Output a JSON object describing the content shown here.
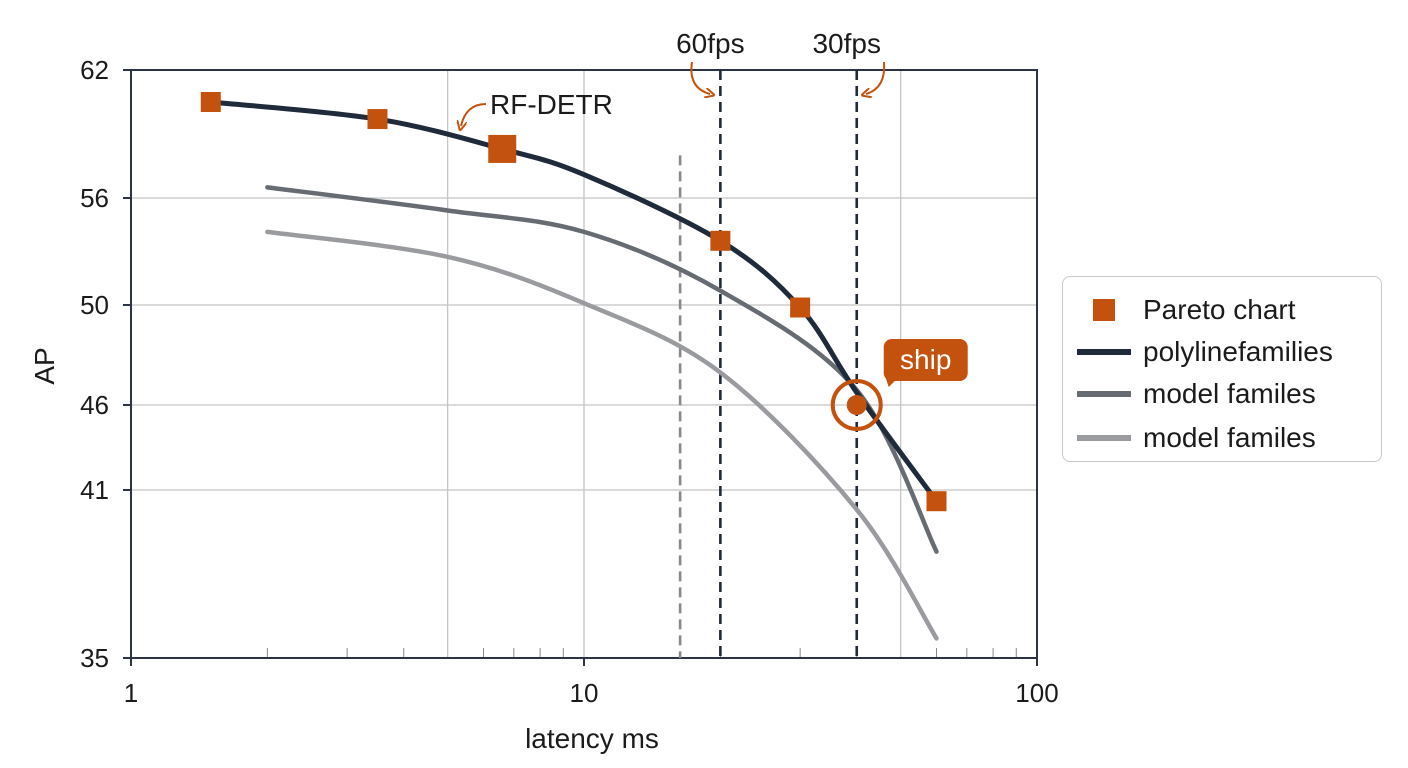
{
  "chart_data": {
    "type": "line",
    "xlabel": "latency ms",
    "ylabel": "AP",
    "x_scale": "log",
    "xlim": [
      1,
      100
    ],
    "ylim": [
      35,
      62
    ],
    "x_ticks": [
      1,
      10,
      100
    ],
    "x_tick_labels": [
      "1",
      "10",
      "100"
    ],
    "y_ticks": [
      35,
      41,
      46,
      50,
      56,
      62
    ],
    "y_tick_labels": [
      "35",
      "41",
      "46",
      "50",
      "56",
      "62"
    ],
    "grid": true,
    "legend_position": "right",
    "series": [
      {
        "name": "polylinefamilies",
        "color": "#1f2a3a",
        "x": [
          1.5,
          3.5,
          6.6,
          10,
          20,
          30,
          40,
          60
        ],
        "y": [
          60.5,
          59.7,
          58.3,
          57.1,
          53.6,
          49.9,
          46.5,
          40.6
        ]
      },
      {
        "name": "model familes",
        "color": "#676b72",
        "x": [
          2,
          5,
          10,
          20,
          40,
          60
        ],
        "y": [
          56.5,
          55.3,
          54.1,
          50.8,
          46.6,
          38.8
        ]
      },
      {
        "name": "model familes",
        "color": "#999b9e",
        "x": [
          2,
          5,
          10,
          20,
          40,
          60
        ],
        "y": [
          54.1,
          52.7,
          50.1,
          47.3,
          40.3,
          35.7
        ]
      }
    ],
    "pareto_points": {
      "name": "Pareto chart",
      "color": "#c4520f",
      "points": [
        {
          "x": 1.5,
          "y": 60.5
        },
        {
          "x": 3.5,
          "y": 59.7
        },
        {
          "x": 6.6,
          "y": 58.3,
          "highlight": true
        },
        {
          "x": 20,
          "y": 53.6
        },
        {
          "x": 30,
          "y": 49.9
        },
        {
          "x": 60,
          "y": 40.6
        }
      ]
    },
    "vlines": [
      {
        "x": 16.3,
        "style": "dashed",
        "color": "#8a8a8a",
        "y_top": 58.0
      },
      {
        "x": 20,
        "style": "dashed",
        "color": "#1f2a3a",
        "label": "60fps"
      },
      {
        "x": 40,
        "style": "dashed",
        "color": "#1f2a3a",
        "label": "30fps"
      }
    ],
    "annotations": [
      {
        "text": "RF-DETR",
        "x": 6.6,
        "y": 58.3
      },
      {
        "text": "ship",
        "x": 40,
        "y": 46.0
      }
    ],
    "accent_color": "#c4520f"
  },
  "legend": {
    "items": [
      {
        "label": "Pareto chart",
        "kind": "square",
        "color": "#c4520f"
      },
      {
        "label": "polylinefamilies",
        "kind": "line",
        "color": "#1f2a3a"
      },
      {
        "label": "model familes",
        "kind": "line",
        "color": "#676b72"
      },
      {
        "label": "model familes",
        "kind": "line",
        "color": "#999b9e"
      }
    ]
  }
}
